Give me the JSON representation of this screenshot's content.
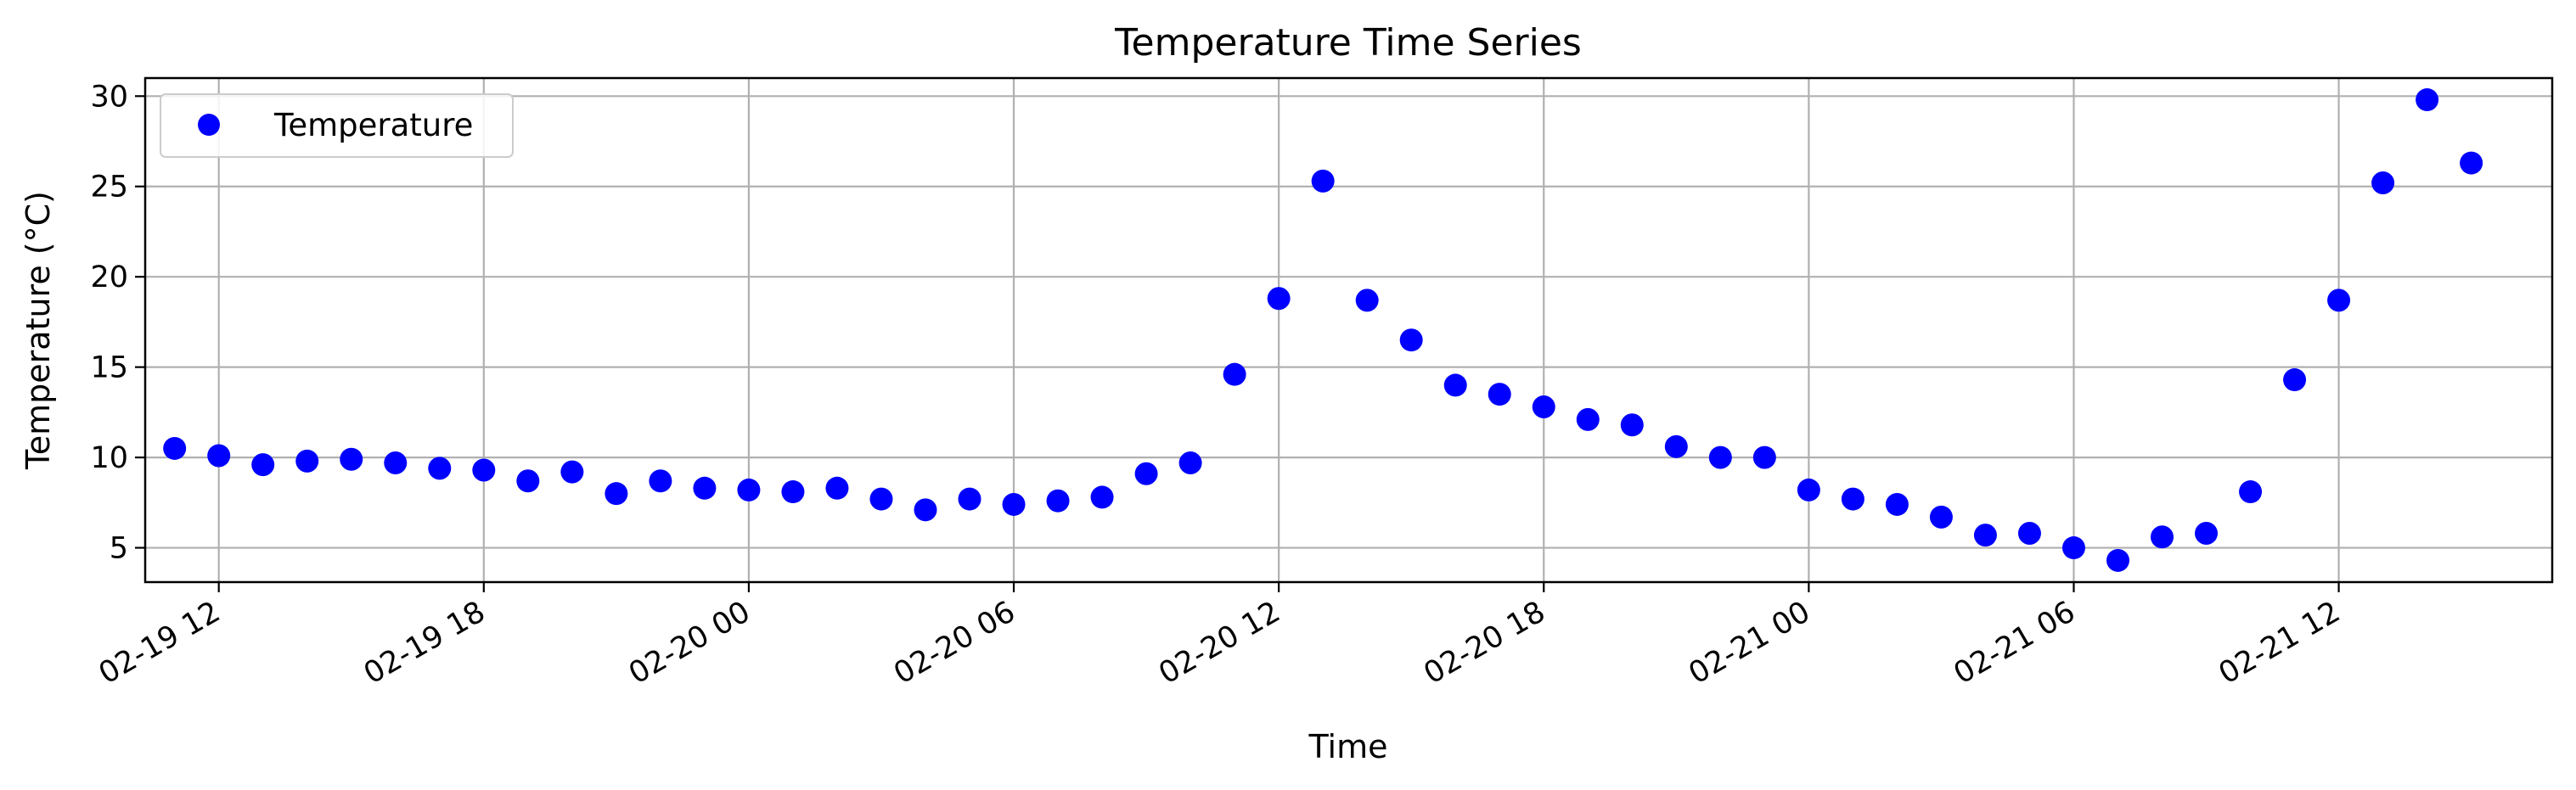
{
  "chart_data": {
    "type": "scatter",
    "title": "Temperature Time Series",
    "xlabel": "Time",
    "ylabel": "Temperature (°C)",
    "x_axis": {
      "scale": "datetime",
      "range": [
        "2024-02-19 10:20",
        "2024-02-21 16:50"
      ],
      "ticks": [
        "2024-02-19 12:00",
        "2024-02-19 18:00",
        "2024-02-20 00:00",
        "2024-02-20 06:00",
        "2024-02-20 12:00",
        "2024-02-20 18:00",
        "2024-02-21 00:00",
        "2024-02-21 06:00",
        "2024-02-21 12:00"
      ],
      "tick_labels": [
        "02-19 12",
        "02-19 18",
        "02-20 00",
        "02-20 06",
        "02-20 12",
        "02-20 18",
        "02-21 00",
        "02-21 06",
        "02-21 12"
      ]
    },
    "y_axis": {
      "range": [
        3.1,
        31.0
      ],
      "ticks": [
        5,
        10,
        15,
        20,
        25,
        30
      ],
      "tick_labels": [
        "5",
        "10",
        "15",
        "20",
        "25",
        "30"
      ]
    },
    "grid": true,
    "legend_position": "top-left",
    "series": [
      {
        "name": "Temperature",
        "color": "#0000ff",
        "marker": "circle",
        "x": [
          "2024-02-19 11:00",
          "2024-02-19 12:00",
          "2024-02-19 13:00",
          "2024-02-19 14:00",
          "2024-02-19 15:00",
          "2024-02-19 16:00",
          "2024-02-19 17:00",
          "2024-02-19 18:00",
          "2024-02-19 19:00",
          "2024-02-19 20:00",
          "2024-02-19 21:00",
          "2024-02-19 22:00",
          "2024-02-19 23:00",
          "2024-02-20 00:00",
          "2024-02-20 01:00",
          "2024-02-20 02:00",
          "2024-02-20 03:00",
          "2024-02-20 04:00",
          "2024-02-20 05:00",
          "2024-02-20 06:00",
          "2024-02-20 07:00",
          "2024-02-20 08:00",
          "2024-02-20 09:00",
          "2024-02-20 10:00",
          "2024-02-20 11:00",
          "2024-02-20 12:00",
          "2024-02-20 13:00",
          "2024-02-20 14:00",
          "2024-02-20 15:00",
          "2024-02-20 16:00",
          "2024-02-20 17:00",
          "2024-02-20 18:00",
          "2024-02-20 19:00",
          "2024-02-20 20:00",
          "2024-02-20 21:00",
          "2024-02-20 22:00",
          "2024-02-20 23:00",
          "2024-02-21 00:00",
          "2024-02-21 01:00",
          "2024-02-21 02:00",
          "2024-02-21 03:00",
          "2024-02-21 04:00",
          "2024-02-21 05:00",
          "2024-02-21 06:00",
          "2024-02-21 07:00",
          "2024-02-21 08:00",
          "2024-02-21 09:00",
          "2024-02-21 10:00",
          "2024-02-21 11:00",
          "2024-02-21 12:00",
          "2024-02-21 13:00",
          "2024-02-21 14:00",
          "2024-02-21 15:00"
        ],
        "y": [
          10.5,
          10.1,
          9.6,
          9.8,
          9.9,
          9.7,
          9.4,
          9.3,
          8.7,
          9.2,
          8.0,
          8.7,
          8.3,
          8.2,
          8.1,
          8.3,
          7.7,
          7.1,
          7.7,
          7.4,
          7.6,
          7.8,
          9.1,
          9.7,
          14.6,
          18.8,
          25.3,
          18.7,
          16.5,
          14.0,
          13.5,
          12.8,
          12.1,
          11.8,
          10.6,
          10.0,
          10.0,
          8.2,
          7.7,
          7.4,
          6.7,
          5.7,
          5.8,
          5.0,
          4.3,
          5.6,
          5.8,
          8.1,
          14.3,
          18.7,
          25.2,
          29.8,
          26.3
        ]
      }
    ]
  }
}
